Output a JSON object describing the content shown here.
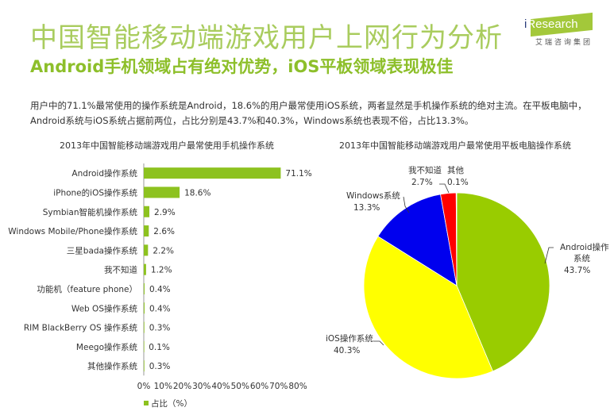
{
  "header": {
    "title": "中国智能移动端游戏用户上网行为分析",
    "subtitle": "Android手机领域占有绝对优势，iOS平板领域表现极佳",
    "logo_text": "iResearch",
    "logo_cn": "艾瑞咨询集团"
  },
  "description": "用户中的71.1%最常使用的操作系统是Android，18.6%的用户最常使用iOS系统，两者显然是手机操作系统的绝对主流。在平板电脑中，Android系统与iOS系统占据前两位，占比分别是43.7%和40.3%，Windows系统也表现不俗，占比13.3%。",
  "colors": {
    "title": "#a9cc5e",
    "subtitle": "#8dbf2a",
    "bar": "#8dc21f"
  },
  "chart_data": [
    {
      "type": "bar",
      "orientation": "horizontal",
      "title": "2013年中国智能移动端游戏用户最常使用手机操作系统",
      "categories": [
        "Android操作系统",
        "iPhone的iOS操作系统",
        "Symbian智能机操作系统",
        "Windows Mobile/Phone操作系统",
        "三星bada操作系统",
        "我不知道",
        "功能机（feature phone）",
        "Web OS操作系统",
        "RIM BlackBerry OS 操作系统",
        "Meego操作系统",
        "其他操作系统"
      ],
      "values": [
        71.1,
        18.6,
        2.9,
        2.6,
        2.2,
        1.2,
        0.4,
        0.4,
        0.3,
        0.1,
        0.3
      ],
      "labels": [
        "71.1%",
        "18.6%",
        "2.9%",
        "2.6%",
        "2.2%",
        "1.2%",
        "0.4%",
        "0.4%",
        "0.3%",
        "0.1%",
        "0.3%"
      ],
      "xlim": [
        0,
        80
      ],
      "xticks": [
        "0%",
        "10%",
        "20%",
        "30%",
        "40%",
        "50%",
        "60%",
        "70%",
        "80%"
      ],
      "legend": "占比（%）",
      "legend_position": "bottom",
      "grid": false,
      "color": "#8dc21f"
    },
    {
      "type": "pie",
      "title": "2013年中国智能移动端游戏用户最常使用平板电脑操作系统",
      "slices": [
        {
          "name": "Android操作系统",
          "value": 43.7,
          "label": "43.7%",
          "color": "#99cc00"
        },
        {
          "name": "iOS操作系统",
          "value": 40.3,
          "label": "40.3%",
          "color": "#ffff00"
        },
        {
          "name": "Windows系统",
          "value": 13.3,
          "label": "13.3%",
          "color": "#0000ee"
        },
        {
          "name": "我不知道",
          "value": 2.7,
          "label": "2.7%",
          "color": "#ff0000"
        },
        {
          "name": "其他",
          "value": 0.1,
          "label": "0.1%",
          "color": "#ff66cc"
        }
      ]
    }
  ]
}
